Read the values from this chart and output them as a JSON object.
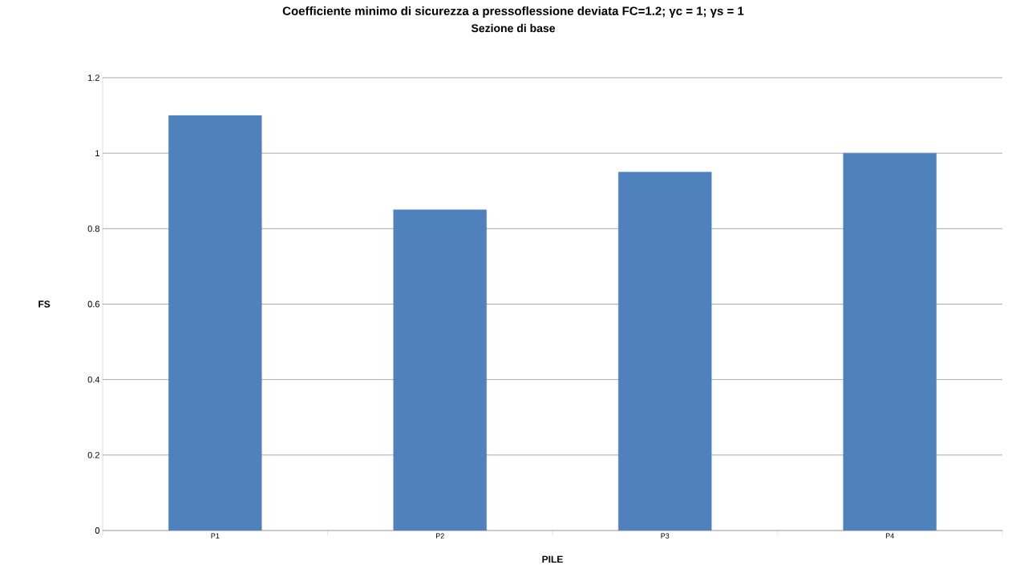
{
  "chart_data": {
    "type": "bar",
    "title": "Coefficiente minimo di sicurezza a pressoflessione deviata   FC=1.2; γc = 1; γs = 1",
    "subtitle": "Sezione di base",
    "xlabel": "PILE",
    "ylabel": "FS",
    "categories": [
      "P1",
      "P2",
      "P3",
      "P4"
    ],
    "values": [
      1.1,
      0.85,
      0.95,
      1.0
    ],
    "color": "#4f81bd",
    "ylim": [
      0,
      1.2
    ],
    "yticks": [
      0,
      0.2,
      0.4,
      0.6,
      0.8,
      1,
      1.2
    ],
    "grid": "y"
  }
}
